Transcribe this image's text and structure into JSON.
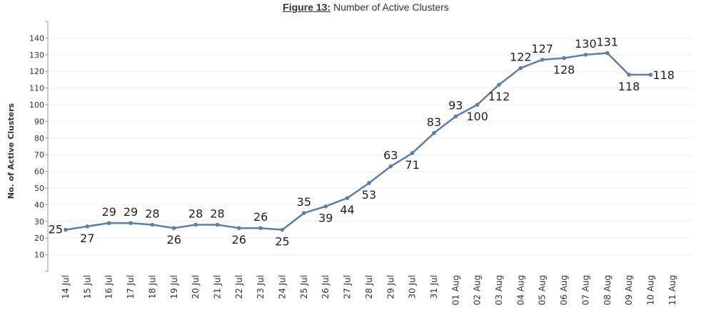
{
  "title": {
    "figure_label": "Figure 13:",
    "text": " Number of Active Clusters"
  },
  "colors": {
    "line": "#5b7fa8",
    "grid": "#efefef",
    "axis": "#999999"
  },
  "chart_data": {
    "type": "line",
    "title": "Figure 13: Number of Active Clusters",
    "xlabel": "",
    "ylabel": "No. of Active Clusters",
    "ylim": [
      0,
      150
    ],
    "yticks": [
      10,
      20,
      30,
      40,
      50,
      60,
      70,
      80,
      90,
      100,
      110,
      120,
      130,
      140
    ],
    "grid": true,
    "categories": [
      "14 Jul",
      "15 Jul",
      "16 Jul",
      "17 Jul",
      "18 Jul",
      "19 Jul",
      "20 Jul",
      "21 Jul",
      "22 Jul",
      "23 Jul",
      "24 Jul",
      "25 Jul",
      "26 Jul",
      "27 Jul",
      "28 Jul",
      "29 Jul",
      "30 Jul",
      "31 Jul",
      "01 Aug",
      "02 Aug",
      "03 Aug",
      "04 Aug",
      "05 Aug",
      "06 Aug",
      "07 Aug",
      "08 Aug",
      "09 Aug",
      "10 Aug",
      "11 Aug"
    ],
    "series": [
      {
        "values": [
          25,
          27,
          29,
          29,
          28,
          26,
          28,
          28,
          26,
          26,
          25,
          35,
          39,
          44,
          53,
          63,
          71,
          83,
          93,
          100,
          112,
          122,
          127,
          128,
          130,
          131,
          118,
          118,
          null
        ],
        "labels": [
          "25",
          "27",
          "29",
          "29",
          "28",
          "26",
          "28",
          "28",
          "26",
          "26",
          "25",
          "35",
          "39",
          "44",
          "53",
          "63",
          "71",
          "83",
          "93",
          "100",
          "112",
          "122",
          "127",
          "128",
          "130",
          "131",
          "118",
          "118",
          ""
        ],
        "label_pos": [
          "left",
          "below",
          "above",
          "above",
          "above",
          "below",
          "above",
          "above",
          "below",
          "above",
          "below",
          "above",
          "below",
          "below",
          "below",
          "above",
          "below",
          "above",
          "above",
          "below",
          "below",
          "above",
          "above",
          "below",
          "above",
          "above",
          "below",
          "right",
          ""
        ]
      }
    ]
  }
}
